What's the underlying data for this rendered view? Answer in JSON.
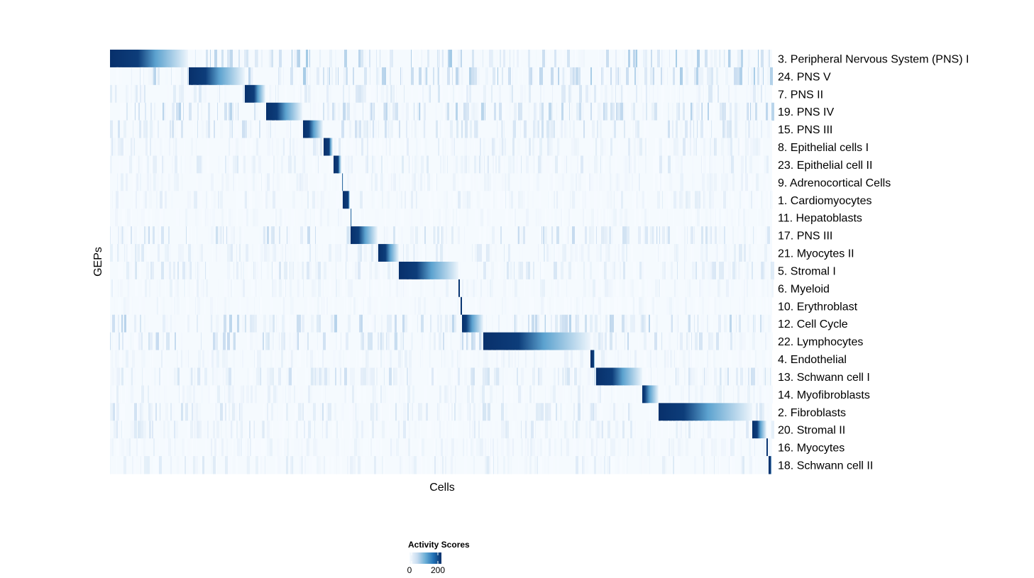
{
  "chart_data": {
    "type": "heatmap",
    "title": "",
    "xlabel": "Cells",
    "ylabel": "GEPs",
    "color_scale": {
      "title": "Activity Scores",
      "min": 0,
      "max": 200,
      "ticks": [
        "0",
        "200"
      ],
      "low_color": "#f7fbff",
      "high_color": "#08306b"
    },
    "legend_position": "bottom",
    "grid": false,
    "n_cells_approx": 933,
    "rows": [
      {
        "label": "3. Peripheral Nervous System (PNS) I",
        "block": [
          0,
          110
        ],
        "dark_fraction": 0.36,
        "noise": 0.25
      },
      {
        "label": "24. PNS V",
        "block": [
          111,
          190
        ],
        "dark_fraction": 0.3,
        "noise": 0.25
      },
      {
        "label": "7. PNS II",
        "block": [
          190,
          219
        ],
        "dark_fraction": 0.45,
        "noise": 0.12
      },
      {
        "label": "19. PNS IV",
        "block": [
          220,
          271
        ],
        "dark_fraction": 0.3,
        "noise": 0.22
      },
      {
        "label": "15. PNS III",
        "block": [
          272,
          300
        ],
        "dark_fraction": 0.3,
        "noise": 0.15
      },
      {
        "label": "8. Epithelial cells I",
        "block": [
          301,
          314
        ],
        "dark_fraction": 0.6,
        "noise": 0.1
      },
      {
        "label": "23. Epithelial cell II",
        "block": [
          315,
          326
        ],
        "dark_fraction": 0.6,
        "noise": 0.1
      },
      {
        "label": "9. Adrenocortical Cells",
        "block": [
          327,
          328
        ],
        "dark_fraction": 0.2,
        "noise": 0.06
      },
      {
        "label": "1. Cardiomyocytes",
        "block": [
          328,
          338
        ],
        "dark_fraction": 0.8,
        "noise": 0.08
      },
      {
        "label": "11. Hepatoblasts",
        "block": [
          339,
          340
        ],
        "dark_fraction": 0.2,
        "noise": 0.04
      },
      {
        "label": "17. PNS III",
        "block": [
          339,
          377
        ],
        "dark_fraction": 0.3,
        "noise": 0.18
      },
      {
        "label": "21. Myocytes II",
        "block": [
          378,
          407
        ],
        "dark_fraction": 0.35,
        "noise": 0.1
      },
      {
        "label": "5. Stromal I",
        "block": [
          407,
          491
        ],
        "dark_fraction": 0.3,
        "noise": 0.12
      },
      {
        "label": "6. Myeloid",
        "block": [
          491,
          493
        ],
        "dark_fraction": 1.0,
        "noise": 0.06
      },
      {
        "label": "10. Erythroblast",
        "block": [
          494,
          496
        ],
        "dark_fraction": 1.0,
        "noise": 0.04
      },
      {
        "label": "12. Cell Cycle",
        "block": [
          496,
          526
        ],
        "dark_fraction": 0.2,
        "noise": 0.22
      },
      {
        "label": "22. Lymphocytes",
        "block": [
          526,
          677
        ],
        "dark_fraction": 0.33,
        "noise": 0.18
      },
      {
        "label": "4. Endothelial",
        "block": [
          677,
          683
        ],
        "dark_fraction": 0.8,
        "noise": 0.06
      },
      {
        "label": "13. Schwann cell I",
        "block": [
          685,
          750
        ],
        "dark_fraction": 0.35,
        "noise": 0.15
      },
      {
        "label": "14. Myofibroblasts",
        "block": [
          750,
          773
        ],
        "dark_fraction": 0.15,
        "noise": 0.08
      },
      {
        "label": "2. Fibroblasts",
        "block": [
          773,
          905
        ],
        "dark_fraction": 0.27,
        "noise": 0.14
      },
      {
        "label": "20. Stromal II",
        "block": [
          905,
          925
        ],
        "dark_fraction": 0.35,
        "noise": 0.1
      },
      {
        "label": "16. Myocytes",
        "block": [
          925,
          927
        ],
        "dark_fraction": 1.0,
        "noise": 0.06
      },
      {
        "label": "18. Schwann cell II",
        "block": [
          928,
          932
        ],
        "dark_fraction": 0.8,
        "noise": 0.1
      }
    ]
  }
}
